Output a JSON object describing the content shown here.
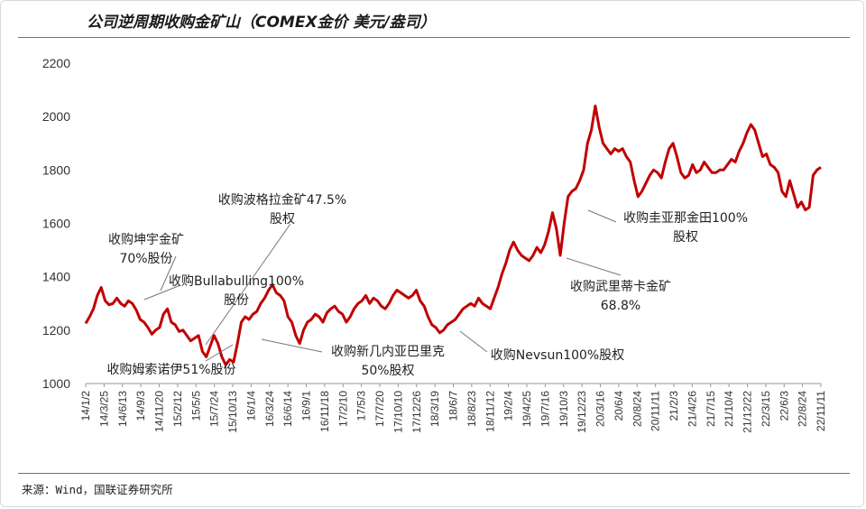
{
  "header": {
    "title": "公司逆周期收购金矿山（COMEX金价 美元/盎司）"
  },
  "footer": {
    "source": "来源：Wind，国联证券研究所"
  },
  "chart_data": {
    "type": "line",
    "title": "公司逆周期收购金矿山（COMEX金价 美元/盎司）",
    "xlabel": "",
    "ylabel": "",
    "ylim": [
      1000,
      2200
    ],
    "yticks": [
      1000,
      1200,
      1400,
      1600,
      1800,
      2000,
      2200
    ],
    "grid": false,
    "legend": "none",
    "line_color": "#c00000",
    "x_tick_labels": [
      "14/1/2",
      "14/3/25",
      "14/6/13",
      "14/9/3",
      "14/11/20",
      "15/2/12",
      "15/5/5",
      "15/7/24",
      "15/10/13",
      "16/1/4",
      "16/3/24",
      "16/6/14",
      "16/9/1",
      "16/11/18",
      "17/2/10",
      "17/5/3",
      "17/7/20",
      "17/10/10",
      "17/12/26",
      "18/3/19",
      "18/6/7",
      "18/8/23",
      "18/11/12",
      "19/2/4",
      "19/4/25",
      "19/7/16",
      "19/10/3",
      "19/12/23",
      "20/3/16",
      "20/6/4",
      "20/8/24",
      "20/11/11",
      "21/2/3",
      "21/4/26",
      "21/7/15",
      "21/10/4",
      "21/12/22",
      "22/3/15",
      "22/6/3",
      "22/8/24",
      "22/11/11"
    ],
    "series": [
      {
        "values": [
          1225,
          1250,
          1280,
          1330,
          1360,
          1310,
          1295,
          1300,
          1320,
          1300,
          1290,
          1310,
          1300,
          1275,
          1240,
          1230,
          1210,
          1185,
          1200,
          1210,
          1260,
          1280,
          1230,
          1220,
          1195,
          1200,
          1180,
          1160,
          1170,
          1180,
          1120,
          1100,
          1140,
          1180,
          1150,
          1100,
          1070,
          1090,
          1080,
          1150,
          1230,
          1250,
          1240,
          1260,
          1270,
          1300,
          1320,
          1350,
          1370,
          1340,
          1330,
          1310,
          1250,
          1230,
          1180,
          1150,
          1200,
          1230,
          1240,
          1260,
          1250,
          1230,
          1265,
          1280,
          1290,
          1270,
          1260,
          1230,
          1250,
          1280,
          1300,
          1310,
          1330,
          1300,
          1320,
          1310,
          1290,
          1280,
          1300,
          1330,
          1350,
          1340,
          1330,
          1320,
          1330,
          1350,
          1310,
          1290,
          1250,
          1220,
          1210,
          1190,
          1200,
          1220,
          1230,
          1240,
          1260,
          1280,
          1290,
          1300,
          1290,
          1320,
          1300,
          1290,
          1280,
          1320,
          1360,
          1410,
          1450,
          1500,
          1530,
          1500,
          1480,
          1470,
          1460,
          1480,
          1510,
          1490,
          1520,
          1570,
          1640,
          1580,
          1480,
          1600,
          1700,
          1720,
          1730,
          1760,
          1800,
          1900,
          1950,
          2040,
          1960,
          1900,
          1880,
          1860,
          1880,
          1870,
          1880,
          1850,
          1830,
          1760,
          1700,
          1720,
          1750,
          1780,
          1800,
          1790,
          1770,
          1830,
          1880,
          1900,
          1850,
          1790,
          1770,
          1780,
          1820,
          1790,
          1800,
          1830,
          1810,
          1790,
          1790,
          1800,
          1800,
          1820,
          1840,
          1830,
          1870,
          1900,
          1940,
          1970,
          1950,
          1900,
          1850,
          1860,
          1820,
          1810,
          1790,
          1720,
          1700,
          1760,
          1710,
          1660,
          1680,
          1650,
          1660,
          1780,
          1800,
          1810
        ]
      }
    ],
    "annotations": [
      {
        "lines": [
          "收购坤宇金矿",
          "70%股份"
        ]
      },
      {
        "lines": [
          "收购波格拉金矿47.5%",
          "股权"
        ]
      },
      {
        "lines": [
          "收购Bullabulling100%",
          "股份"
        ]
      },
      {
        "lines": [
          "收购姆索诺伊51%股份"
        ]
      },
      {
        "lines": [
          "收购新几内亚巴里克",
          "50%股权"
        ]
      },
      {
        "lines": [
          "收购Nevsun100%股权"
        ]
      },
      {
        "lines": [
          "收购圭亚那金田100%",
          "股权"
        ]
      },
      {
        "lines": [
          "收购武里蒂卡金矿",
          "68.8%"
        ]
      }
    ]
  }
}
